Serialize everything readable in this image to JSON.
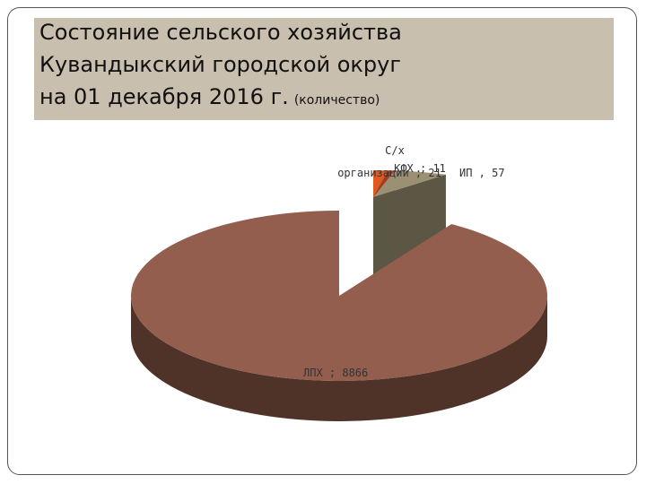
{
  "header": {
    "line1": "Состояние сельского хозяйства",
    "line2": "Кувандыкский городской округ",
    "line3": "на 01 декабря 2016 г.",
    "unit_note": "(количество)"
  },
  "chart_data": {
    "type": "pie",
    "style": "3d-exploded",
    "categories": [
      "ЛПХ",
      "С/х организации",
      "КФХ",
      "ИП"
    ],
    "values": [
      8866,
      21,
      11,
      57
    ],
    "data_labels": [
      {
        "name": "ЛПХ",
        "sep": " ; ",
        "value": "8866"
      },
      {
        "name": "С/х организации",
        "sep": " ; ",
        "value": "21"
      },
      {
        "name": "КФХ",
        "sep": " ; ",
        "value": "11"
      },
      {
        "name": "ИП",
        "sep": " , ",
        "value": "57"
      }
    ],
    "colors": {
      "ЛПХ": "#935e4e",
      "С/х организации": "#dd5a22",
      "КФХ": "#a63a1e",
      "ИП": "#9c9074"
    },
    "side_colors": {
      "ЛПХ": "#4f3328",
      "С/х организации": "#8a3515",
      "КФХ": "#5e2010",
      "ИП": "#5c5644"
    }
  }
}
